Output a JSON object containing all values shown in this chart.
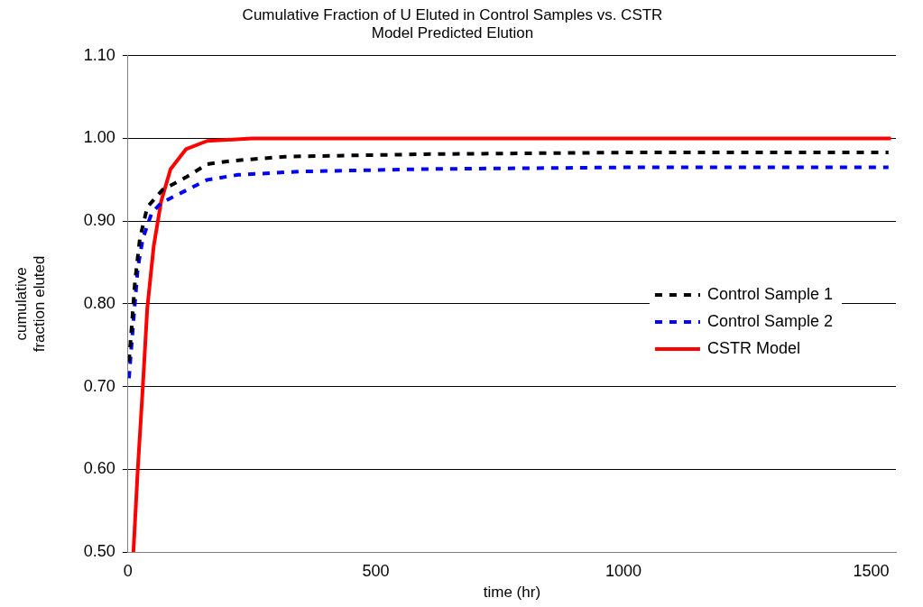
{
  "chart_data": {
    "type": "line",
    "title": "Cumulative Fraction of U Eluted in Control Samples vs. CSTR Model Predicted Elution",
    "xlabel": "time (hr)",
    "ylabel": "cumulative fraction eluted",
    "xlim": [
      0,
      1550
    ],
    "xticks": [
      0,
      500,
      1000,
      1500
    ],
    "ylim": [
      0.5,
      1.1
    ],
    "yticks": [
      {
        "value": 0.5,
        "label": "0.50"
      },
      {
        "value": 0.6,
        "label": "0.60"
      },
      {
        "value": 0.7,
        "label": "0.70"
      },
      {
        "value": 0.8,
        "label": "0.80"
      },
      {
        "value": 0.9,
        "label": "0.90"
      },
      {
        "value": 1.0,
        "label": "1.00"
      },
      {
        "value": 1.1,
        "label": "1.10"
      }
    ],
    "grid": "y",
    "legend": "right",
    "marker": "none",
    "series": [
      {
        "name": "Control Sample 1",
        "color": "#000000",
        "line_style": "dashed",
        "x": [
          2,
          8,
          14,
          24,
          39,
          70,
          117,
          160,
          210,
          316,
          600,
          1000,
          1535
        ],
        "values": [
          0.73,
          0.776,
          0.826,
          0.879,
          0.917,
          0.938,
          0.953,
          0.969,
          0.973,
          0.978,
          0.981,
          0.983,
          0.983
        ]
      },
      {
        "name": "Control Sample 2",
        "color": "#0000ff",
        "line_style": "dashed",
        "x": [
          2,
          11,
          20,
          30,
          48,
          67,
          110,
          160,
          222,
          347,
          600,
          1000,
          1535
        ],
        "values": [
          0.71,
          0.779,
          0.844,
          0.879,
          0.91,
          0.922,
          0.935,
          0.95,
          0.956,
          0.96,
          0.963,
          0.965,
          0.965
        ]
      },
      {
        "name": "CSTR Model",
        "color": "#ff0000",
        "line_style": "solid",
        "x": [
          11,
          20,
          30,
          39,
          52,
          67,
          86,
          117,
          160,
          250,
          600,
          1000,
          1540
        ],
        "values": [
          0.5,
          0.602,
          0.7,
          0.795,
          0.87,
          0.924,
          0.963,
          0.987,
          0.997,
          1.0,
          1.0,
          1.0,
          1.0
        ]
      }
    ]
  }
}
